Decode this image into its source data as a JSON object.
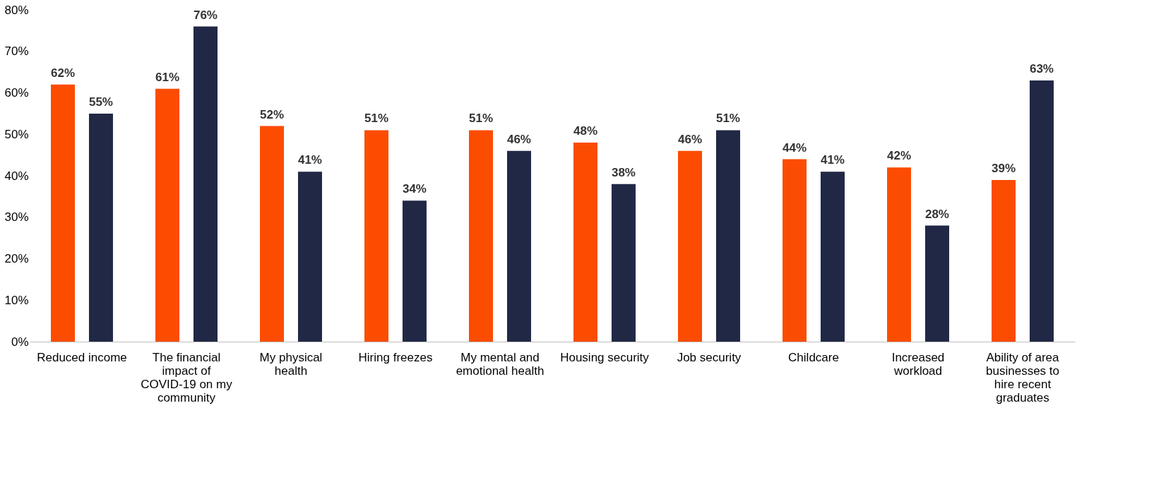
{
  "chart_data": {
    "type": "bar",
    "categories": [
      "Reduced income",
      "The financial impact of COVID-19 on my community",
      "My physical health",
      "Hiring freezes",
      "My mental and emotional health",
      "Housing security",
      "Job security",
      "Childcare",
      "Increased workload",
      "Ability of area businesses to hire recent graduates"
    ],
    "series": [
      {
        "color": "#fc4c02",
        "values": [
          62,
          61,
          52,
          51,
          51,
          48,
          46,
          44,
          42,
          39
        ],
        "value_labels": [
          "62%",
          "61%",
          "52%",
          "51%",
          "51%",
          "48%",
          "46%",
          "44%",
          "42%",
          "39%"
        ]
      },
      {
        "color": "#212845",
        "values": [
          55,
          76,
          41,
          34,
          46,
          38,
          51,
          41,
          28,
          63
        ],
        "value_labels": [
          "55%",
          "76%",
          "41%",
          "34%",
          "46%",
          "38%",
          "51%",
          "41%",
          "28%",
          "63%"
        ]
      }
    ],
    "ylim": [
      0,
      80
    ],
    "yticks": [
      {
        "value": 0,
        "label": "0%"
      },
      {
        "value": 10,
        "label": "10%"
      },
      {
        "value": 20,
        "label": "20%"
      },
      {
        "value": 30,
        "label": "30%"
      },
      {
        "value": 40,
        "label": "40%"
      },
      {
        "value": 50,
        "label": "50%"
      },
      {
        "value": 60,
        "label": "60%"
      },
      {
        "value": 70,
        "label": "70%"
      },
      {
        "value": 80,
        "label": "80%"
      }
    ],
    "grid": false,
    "legend": false
  }
}
